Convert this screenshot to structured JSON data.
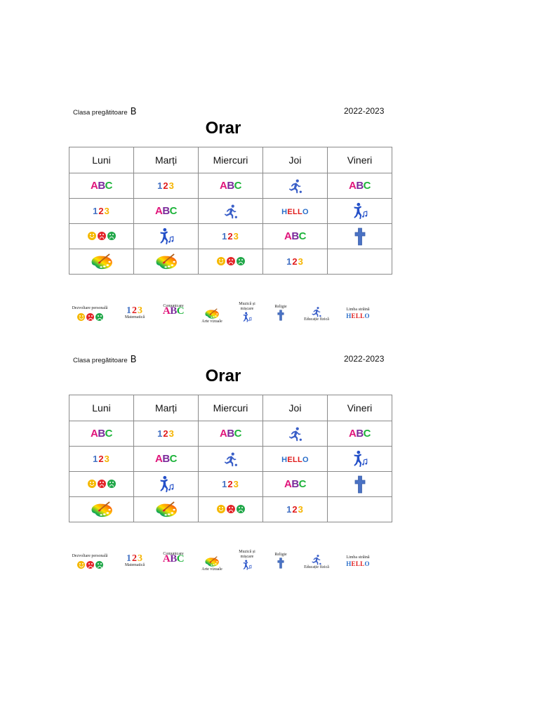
{
  "document": {
    "class_label": "Clasa pregătitoare",
    "class_letter": "B",
    "school_year": "2022-2023",
    "title": "Orar"
  },
  "days": [
    "Luni",
    "Marți",
    "Miercuri",
    "Joi",
    "Vineri"
  ],
  "timetable": [
    [
      "comunicare",
      "matematica",
      "comunicare",
      "educatie-fizica",
      "comunicare"
    ],
    [
      "matematica",
      "comunicare",
      "educatie-fizica",
      "limba-straina",
      "muzica-miscare"
    ],
    [
      "dezvoltare-personala",
      "muzica-miscare",
      "matematica",
      "comunicare",
      "religie"
    ],
    [
      "arte-vizuale",
      "arte-vizuale",
      "dezvoltare-personala",
      "matematica",
      ""
    ]
  ],
  "subjects": {
    "comunicare": {
      "label": "Comunicare",
      "glyph": "ABC"
    },
    "matematica": {
      "label": "Matematică",
      "glyph": "123"
    },
    "educatie-fizica": {
      "label": "Educație fizică",
      "icon": "soccer-player-icon"
    },
    "limba-straina": {
      "label": "Limba străină",
      "glyph": "HELLO"
    },
    "muzica-miscare": {
      "label": "Muzică și mișcare",
      "icon": "dancer-music-icon"
    },
    "dezvoltare-personala": {
      "label": "Dezvoltare personală",
      "icon": "emotion-faces-icon"
    },
    "religie": {
      "label": "Religie",
      "icon": "cross-icon"
    },
    "arte-vizuale": {
      "label": "Arte vizuale",
      "icon": "paint-palette-icon"
    }
  },
  "legend": {
    "dezvoltare": "Dezvoltare personală",
    "matematica": "Matematică",
    "comunicare": "Comunicare",
    "arte": "Arte vizuale",
    "muzica_line1": "Muzică și",
    "muzica_line2": "mișcare",
    "religie": "Religie",
    "educatie": "Educație fizică",
    "limba": "Limba străină"
  },
  "glyphs": {
    "abc": [
      "A",
      "B",
      "C"
    ],
    "n123": [
      "1",
      "2",
      "3"
    ],
    "hello": [
      "H",
      "E",
      "L",
      "L",
      "O"
    ]
  },
  "colors": {
    "abc": [
      "#e0157b",
      "#7a2a9b",
      "#1db33a"
    ],
    "n123": [
      "#4472c4",
      "#e01b1b",
      "#f5b400"
    ],
    "hello": [
      "#2c6fc9",
      "#e01b1b",
      "#e01b1b",
      "#e01b1b",
      "#2c6fc9"
    ],
    "icon_blue": "#3a5fc8",
    "cross_blue": "#4a72c4"
  },
  "copies": 2
}
